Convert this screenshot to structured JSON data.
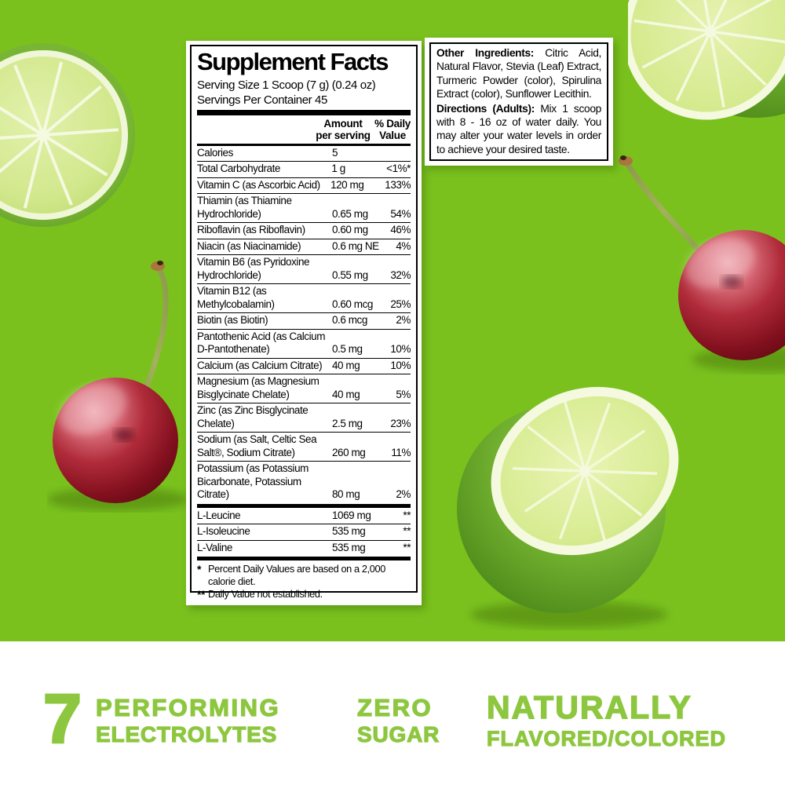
{
  "colors": {
    "background_green": "#7ac11d",
    "claims_green": "#8dc73f",
    "panel_white": "#ffffff",
    "text_black": "#000000"
  },
  "supplement_panel": {
    "title": "Supplement Facts",
    "serving_size": "Serving Size 1 Scoop (7 g) (0.24 oz)",
    "servings_per_container": "Servings Per Container 45",
    "col_amount_line1": "Amount",
    "col_amount_line2": "per serving",
    "col_dv_line1": "% Daily",
    "col_dv_line2": "Value",
    "rows": [
      {
        "name": "Calories",
        "amount": "5",
        "dv": ""
      },
      {
        "name": "Total Carbohydrate",
        "amount": "1 g",
        "dv": "<1%*"
      },
      {
        "name": "Vitamin C (as Ascorbic Acid)",
        "amount": "120 mg",
        "dv": "133%"
      },
      {
        "name": "Thiamin (as Thiamine Hydrochloride)",
        "amount": "0.65 mg",
        "dv": "54%"
      },
      {
        "name": "Riboflavin (as Riboflavin)",
        "amount": "0.60 mg",
        "dv": "46%"
      },
      {
        "name": "Niacin (as Niacinamide)",
        "amount": "0.6 mg NE",
        "dv": "4%"
      },
      {
        "name": "Vitamin B6 (as Pyridoxine Hydrochloride)",
        "amount": "0.55 mg",
        "dv": "32%"
      },
      {
        "name": "Vitamin B12 (as Methylcobalamin)",
        "amount": "0.60 mcg",
        "dv": "25%"
      },
      {
        "name": "Biotin (as Biotin)",
        "amount": "0.6 mcg",
        "dv": "2%"
      },
      {
        "name": "Pantothenic Acid (as Calcium D-Pantothenate)",
        "amount": "0.5 mg",
        "dv": "10%"
      },
      {
        "name": "Calcium (as Calcium Citrate)",
        "amount": "40 mg",
        "dv": "10%"
      },
      {
        "name": "Magnesium (as Magnesium Bisglycinate Chelate)",
        "amount": "40 mg",
        "dv": "5%"
      },
      {
        "name": "Zinc (as Zinc Bisglycinate Chelate)",
        "amount": "2.5 mg",
        "dv": "23%"
      },
      {
        "name": "Sodium (as Salt, Celtic Sea Salt®, Sodium Citrate)",
        "amount": "260 mg",
        "dv": "11%"
      },
      {
        "name": "Potassium (as Potassium Bicarbonate, Potassium Citrate)",
        "amount": "80 mg",
        "dv": "2%"
      }
    ],
    "amino_rows": [
      {
        "name": "L-Leucine",
        "amount": "1069 mg",
        "dv": "**"
      },
      {
        "name": "L-Isoleucine",
        "amount": "535 mg",
        "dv": "**"
      },
      {
        "name": "L-Valine",
        "amount": "535 mg",
        "dv": "**"
      }
    ],
    "footnotes": [
      {
        "mark": "*",
        "text": "Percent Daily Values are based on a 2,000 calorie diet."
      },
      {
        "mark": "**",
        "text": "Daily Value not established."
      }
    ]
  },
  "info_box": {
    "other_ingredients_label": "Other Ingredients:",
    "other_ingredients_text": " Citric Acid, Natural Flavor, Stevia (Leaf) Extract, Turmeric Powder (color), Spirulina Extract (color), Sunflower Lecithin.",
    "directions_label": "Directions (Adults):",
    "directions_text": " Mix 1 scoop with 8 - 16 oz of water daily. You may alter your water levels in order to achieve your desired taste."
  },
  "claims": {
    "seven": "7",
    "performing": "PERFORMING",
    "electrolytes": "ELECTROLYTES",
    "zero": "ZERO",
    "sugar": "SUGAR",
    "naturally": "NATURALLY",
    "flavored_colored": "FLAVORED/COLORED"
  },
  "decor": {
    "fruits": [
      "lime-slice-top-left",
      "lime-half-top-right",
      "cherry-left",
      "cherry-right",
      "lime-half-bottom"
    ]
  }
}
